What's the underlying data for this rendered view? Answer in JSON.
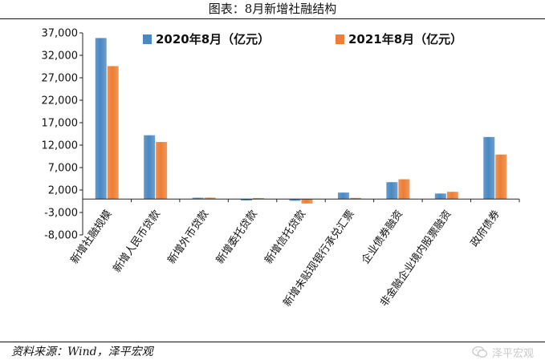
{
  "title": "图表：8月新增社融结构",
  "source": "资料来源：Wind，泽平宏观",
  "watermark": "泽平宏观",
  "chart_data": {
    "type": "bar",
    "categories": [
      "新增社融规模",
      "新增人民币贷款",
      "新增外币贷款",
      "新增委托贷款",
      "新增信托贷款",
      "新增未贴现银行承兑汇票",
      "企业债券融资",
      "非金融企业境内股票融资",
      "政府债券"
    ],
    "series": [
      {
        "name": "2020年8月（亿元）",
        "color": "#4a88c2",
        "values": [
          35853,
          14201,
          285,
          -343,
          -402,
          1432,
          3752,
          1218,
          13809
        ]
      },
      {
        "name": "2021年8月（亿元）",
        "color": "#ec7e35",
        "values": [
          29600,
          12700,
          310,
          200,
          -1000,
          244,
          4400,
          1600,
          9900
        ]
      }
    ],
    "yticks": [
      37000,
      32000,
      27000,
      22000,
      17000,
      12000,
      7000,
      2000,
      -3000,
      -8000
    ],
    "ytick_labels": [
      "37,000",
      "32,000",
      "27,000",
      "22,000",
      "17,000",
      "12,000",
      "7,000",
      "2,000",
      "-3,000",
      "-8,000"
    ],
    "ylim": [
      -8000,
      37000
    ],
    "grid": false,
    "legend_position": "top-right"
  }
}
